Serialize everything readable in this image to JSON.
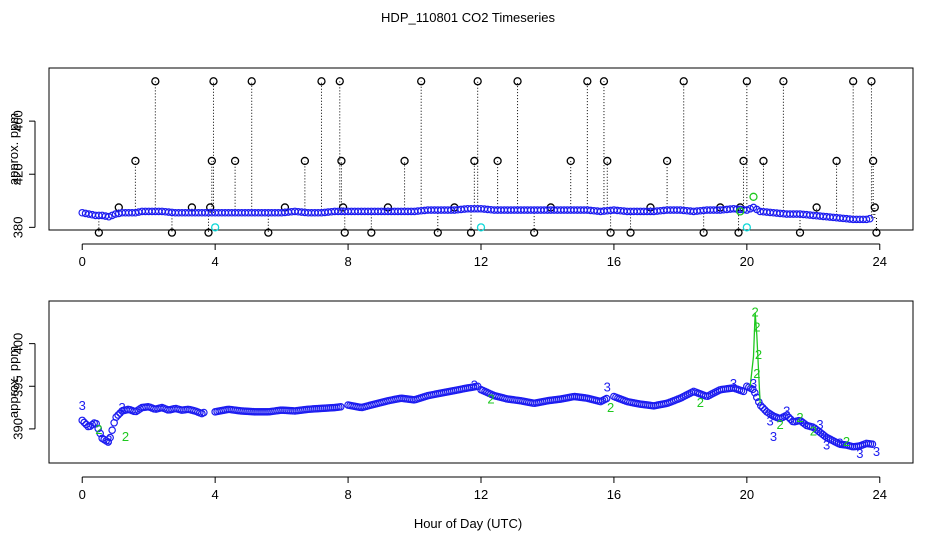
{
  "figure_title": "HDP_110801  CO2 Timeseries",
  "colors": {
    "black": "#000000",
    "blue": "#1c1cf0",
    "green": "#1ec81e",
    "cyan": "#10d8d8"
  },
  "chart_data": [
    {
      "type": "scatter",
      "panel": "top",
      "title": "HDP_110801  CO2 Timeseries",
      "xlabel": "",
      "ylabel": "approx. ppm",
      "xlim": [
        -1.0,
        25.0
      ],
      "ylim": [
        378,
        500
      ],
      "xticks": [
        0,
        4,
        8,
        12,
        16,
        20,
        24
      ],
      "yticks": [
        380,
        420,
        460
      ],
      "grid": false,
      "baseline_series": {
        "name": "co2",
        "x": [
          0.0,
          0.2,
          0.4,
          0.6,
          0.8,
          1.0,
          1.2,
          1.4,
          1.6,
          1.8,
          2.0,
          2.4,
          2.8,
          3.2,
          3.6,
          4.0,
          4.4,
          4.8,
          5.2,
          5.6,
          6.0,
          6.4,
          6.8,
          7.2,
          7.6,
          8.0,
          8.4,
          8.8,
          9.2,
          9.6,
          10.0,
          10.4,
          10.8,
          11.2,
          11.6,
          12.0,
          12.4,
          12.8,
          13.2,
          13.6,
          14.0,
          14.4,
          14.8,
          15.2,
          15.6,
          16.0,
          16.4,
          16.8,
          17.2,
          17.6,
          18.0,
          18.4,
          18.8,
          19.2,
          19.6,
          20.0,
          20.2,
          20.4,
          20.8,
          21.2,
          21.6,
          22.0,
          22.4,
          22.8,
          23.2,
          23.6,
          23.8
        ],
        "y": [
          391,
          390,
          389,
          389,
          388,
          390,
          391,
          391,
          391,
          392,
          392,
          392,
          391,
          391,
          391,
          391,
          391,
          391,
          391,
          391,
          391,
          392,
          391,
          391,
          392,
          392,
          392,
          392,
          392,
          392,
          392,
          393,
          393,
          393,
          394,
          394,
          393,
          393,
          393,
          393,
          393,
          393,
          393,
          393,
          392,
          393,
          392,
          392,
          392,
          393,
          393,
          392,
          393,
          393,
          394,
          393,
          395,
          392,
          391,
          390,
          390,
          389,
          388,
          387,
          386,
          386,
          387
        ]
      },
      "spikes": [
        {
          "x": 0.5,
          "y": 376
        },
        {
          "x": 1.1,
          "y": 395
        },
        {
          "x": 1.6,
          "y": 430
        },
        {
          "x": 2.2,
          "y": 490
        },
        {
          "x": 2.7,
          "y": 376
        },
        {
          "x": 3.3,
          "y": 395
        },
        {
          "x": 3.8,
          "y": 376
        },
        {
          "x": 3.85,
          "y": 395
        },
        {
          "x": 3.9,
          "y": 430
        },
        {
          "x": 3.95,
          "y": 490
        },
        {
          "x": 4.6,
          "y": 430
        },
        {
          "x": 5.1,
          "y": 490
        },
        {
          "x": 5.6,
          "y": 376
        },
        {
          "x": 6.1,
          "y": 395
        },
        {
          "x": 6.7,
          "y": 430
        },
        {
          "x": 7.2,
          "y": 490
        },
        {
          "x": 7.75,
          "y": 490
        },
        {
          "x": 7.8,
          "y": 430
        },
        {
          "x": 7.85,
          "y": 395
        },
        {
          "x": 7.9,
          "y": 376
        },
        {
          "x": 8.7,
          "y": 376
        },
        {
          "x": 9.2,
          "y": 395
        },
        {
          "x": 9.7,
          "y": 430
        },
        {
          "x": 10.2,
          "y": 490
        },
        {
          "x": 10.7,
          "y": 376
        },
        {
          "x": 11.2,
          "y": 395
        },
        {
          "x": 11.7,
          "y": 376
        },
        {
          "x": 11.8,
          "y": 430
        },
        {
          "x": 11.9,
          "y": 490
        },
        {
          "x": 12.5,
          "y": 430
        },
        {
          "x": 13.1,
          "y": 490
        },
        {
          "x": 13.6,
          "y": 376
        },
        {
          "x": 14.1,
          "y": 395
        },
        {
          "x": 14.7,
          "y": 430
        },
        {
          "x": 15.2,
          "y": 490
        },
        {
          "x": 15.7,
          "y": 490
        },
        {
          "x": 15.8,
          "y": 430
        },
        {
          "x": 15.9,
          "y": 376
        },
        {
          "x": 16.5,
          "y": 376
        },
        {
          "x": 17.1,
          "y": 395
        },
        {
          "x": 17.6,
          "y": 430
        },
        {
          "x": 18.1,
          "y": 490
        },
        {
          "x": 18.7,
          "y": 376
        },
        {
          "x": 19.2,
          "y": 395
        },
        {
          "x": 19.75,
          "y": 376
        },
        {
          "x": 19.8,
          "y": 395
        },
        {
          "x": 19.9,
          "y": 430
        },
        {
          "x": 20.0,
          "y": 490
        },
        {
          "x": 20.5,
          "y": 430
        },
        {
          "x": 21.1,
          "y": 490
        },
        {
          "x": 21.6,
          "y": 376
        },
        {
          "x": 22.1,
          "y": 395
        },
        {
          "x": 22.7,
          "y": 430
        },
        {
          "x": 23.2,
          "y": 490
        },
        {
          "x": 23.75,
          "y": 490
        },
        {
          "x": 23.8,
          "y": 430
        },
        {
          "x": 23.85,
          "y": 395
        },
        {
          "x": 23.9,
          "y": 376
        }
      ],
      "cyan_points": [
        {
          "x": 4.0,
          "y": 380
        },
        {
          "x": 12.0,
          "y": 380
        },
        {
          "x": 20.0,
          "y": 380
        }
      ],
      "green_points": [
        {
          "x": 20.2,
          "y": 403
        },
        {
          "x": 19.8,
          "y": 392
        }
      ]
    },
    {
      "type": "scatter",
      "panel": "bottom",
      "xlabel": "Hour of Day (UTC)",
      "ylabel": "approx. ppm",
      "xlim": [
        -1.0,
        25.0
      ],
      "ylim": [
        386,
        405
      ],
      "xticks": [
        0,
        4,
        8,
        12,
        16,
        20,
        24
      ],
      "yticks": [
        390,
        395,
        400
      ],
      "grid": false,
      "segments": [
        {
          "x": [
            0.0,
            0.2,
            0.4,
            0.6,
            0.8,
            1.0,
            1.2,
            1.4,
            1.6,
            1.8,
            2.0,
            2.2,
            2.4,
            2.6,
            2.8,
            3.0,
            3.2,
            3.4,
            3.6,
            3.7
          ],
          "y": [
            391.0,
            390.2,
            390.8,
            388.9,
            388.4,
            391.3,
            392.1,
            392.3,
            392.0,
            392.5,
            392.6,
            392.3,
            392.5,
            392.2,
            392.4,
            392.2,
            392.3,
            392.1,
            391.8,
            392.0
          ]
        },
        {
          "x": [
            4.0,
            4.4,
            4.8,
            5.2,
            5.6,
            6.0,
            6.4,
            6.8,
            7.2,
            7.6,
            7.8
          ],
          "y": [
            392.0,
            392.3,
            392.1,
            392.0,
            392.0,
            392.2,
            392.1,
            392.3,
            392.4,
            392.5,
            392.6
          ]
        },
        {
          "x": [
            8.0,
            8.4,
            8.8,
            9.2,
            9.6,
            10.0,
            10.4,
            10.8,
            11.2,
            11.6,
            11.9
          ],
          "y": [
            392.8,
            392.5,
            392.9,
            393.3,
            393.6,
            393.4,
            393.9,
            394.2,
            394.5,
            394.8,
            395.0
          ]
        },
        {
          "x": [
            12.0,
            12.4,
            12.8,
            13.2,
            13.6,
            14.0,
            14.4,
            14.8,
            15.2,
            15.6,
            15.8
          ],
          "y": [
            394.6,
            393.9,
            393.5,
            393.3,
            393.0,
            393.3,
            393.5,
            393.8,
            393.6,
            393.2,
            393.6
          ]
        },
        {
          "x": [
            16.0,
            16.4,
            16.8,
            17.2,
            17.6,
            18.0,
            18.4,
            18.8,
            19.2,
            19.6,
            19.9
          ],
          "y": [
            393.8,
            393.2,
            392.9,
            392.7,
            393.0,
            393.6,
            394.4,
            393.8,
            394.6,
            394.8,
            394.4
          ]
        },
        {
          "x": [
            20.0,
            20.2,
            20.4,
            20.6,
            20.8,
            21.0,
            21.2,
            21.4,
            21.6,
            21.8,
            22.0,
            22.2,
            22.4,
            22.6,
            22.8,
            23.0,
            23.2,
            23.4,
            23.6,
            23.8
          ],
          "y": [
            395.0,
            394.6,
            392.8,
            392.0,
            391.5,
            391.2,
            391.6,
            390.8,
            391.0,
            390.4,
            390.2,
            389.6,
            389.0,
            388.6,
            388.2,
            388.1,
            387.9,
            388.0,
            388.3,
            388.2
          ]
        }
      ],
      "labels_blue_3": [
        {
          "x": 0.0,
          "y": 392.6
        },
        {
          "x": 0.8,
          "y": 388.6
        },
        {
          "x": 1.2,
          "y": 392.4
        },
        {
          "x": 11.8,
          "y": 395.0
        },
        {
          "x": 15.8,
          "y": 394.8
        },
        {
          "x": 19.6,
          "y": 395.2
        },
        {
          "x": 20.2,
          "y": 395.2
        },
        {
          "x": 20.7,
          "y": 390.8
        },
        {
          "x": 20.8,
          "y": 389.0
        },
        {
          "x": 21.2,
          "y": 392.0
        },
        {
          "x": 22.2,
          "y": 390.4
        },
        {
          "x": 22.4,
          "y": 388.0
        },
        {
          "x": 22.8,
          "y": 388.2
        },
        {
          "x": 23.4,
          "y": 387.0
        },
        {
          "x": 23.9,
          "y": 387.2
        }
      ],
      "labels_green_2": [
        {
          "x": 20.25,
          "y": 403.6
        },
        {
          "x": 20.3,
          "y": 401.8
        },
        {
          "x": 20.35,
          "y": 398.6
        },
        {
          "x": 20.3,
          "y": 396.4
        },
        {
          "x": 0.5,
          "y": 389.8
        },
        {
          "x": 1.3,
          "y": 389.0
        },
        {
          "x": 12.3,
          "y": 393.4
        },
        {
          "x": 15.9,
          "y": 392.4
        },
        {
          "x": 18.6,
          "y": 393.0
        },
        {
          "x": 21.0,
          "y": 390.4
        },
        {
          "x": 21.6,
          "y": 391.2
        },
        {
          "x": 22.0,
          "y": 389.6
        },
        {
          "x": 23.0,
          "y": 388.4
        }
      ]
    }
  ]
}
